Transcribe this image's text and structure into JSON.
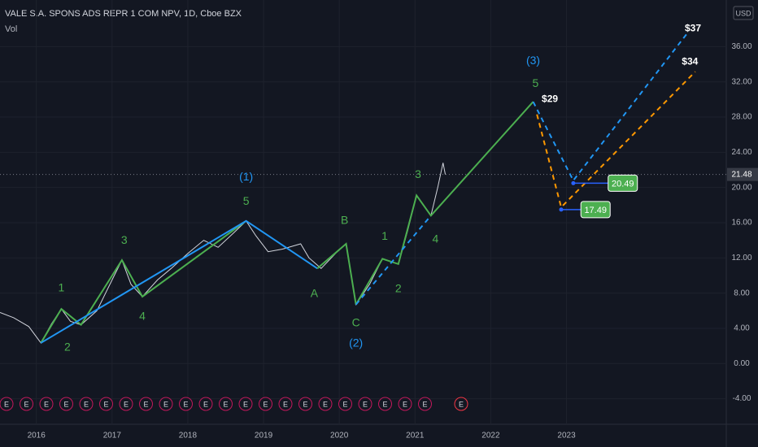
{
  "chart_data": {
    "type": "line",
    "title": "VALE S.A. SPONS ADS REPR 1 COM NPV, 1D, Cboe BZX",
    "subtitle": "Vol",
    "currency": "USD",
    "earnings_marker": "E",
    "color": "#d1d4dc",
    "grid": true,
    "xlim": [
      2015.52,
      2025.11
    ],
    "ylim": [
      -6.9,
      41.3
    ],
    "xticks": [
      2016,
      2017,
      2018,
      2019,
      2020,
      2021,
      2022,
      2023
    ],
    "yticks": [
      {
        "value": -4,
        "label": "-4.00"
      },
      {
        "value": 0,
        "label": "0.00"
      },
      {
        "value": 4,
        "label": "4.00"
      },
      {
        "value": 8,
        "label": "8.00"
      },
      {
        "value": 12,
        "label": "12.00"
      },
      {
        "value": 16,
        "label": "16.00"
      },
      {
        "value": 20,
        "label": "20.00"
      },
      {
        "value": 24,
        "label": "24.00"
      },
      {
        "value": 28,
        "label": "28.00"
      },
      {
        "value": 32,
        "label": "32.00"
      },
      {
        "value": 36,
        "label": "36.00"
      }
    ],
    "x": [
      2015.52,
      2015.7,
      2015.9,
      2016.06,
      2016.2,
      2016.33,
      2016.45,
      2016.59,
      2016.8,
      2017.0,
      2017.13,
      2017.25,
      2017.4,
      2017.6,
      2017.78,
      2018.0,
      2018.21,
      2018.4,
      2018.6,
      2018.77,
      2018.9,
      2019.06,
      2019.25,
      2019.49,
      2019.6,
      2019.76,
      2019.95,
      2020.09,
      2020.22,
      2020.4,
      2020.57,
      2020.78,
      2020.9,
      2021.02,
      2021.21,
      2021.3,
      2021.37,
      2021.4
    ],
    "values": [
      5.8,
      5.2,
      4.2,
      2.34,
      4.5,
      6.2,
      4.8,
      4.4,
      6.0,
      9.5,
      11.75,
      9.0,
      7.6,
      9.5,
      10.8,
      12.5,
      14.0,
      13.2,
      14.8,
      16.2,
      14.5,
      12.7,
      13.0,
      13.6,
      12.0,
      10.8,
      12.5,
      13.6,
      6.7,
      9.0,
      11.9,
      11.3,
      15.0,
      19.1,
      16.8,
      20.0,
      22.8,
      21.48
    ],
    "last_price": 21.48,
    "overlays": [
      {
        "color": "#4caf50",
        "dashed": false,
        "x": [
          2016.06,
          2016.33,
          2016.59,
          2017.13,
          2017.4,
          2018.77
        ],
        "y": [
          2.34,
          6.2,
          4.4,
          11.75,
          7.6,
          16.2
        ]
      },
      {
        "color": "#2196f3",
        "dashed": false,
        "x": [
          2016.06,
          2018.77,
          2019.71
        ],
        "y": [
          2.34,
          16.2,
          10.8
        ]
      },
      {
        "color": "#4caf50",
        "dashed": false,
        "x": [
          2019.71,
          2020.09,
          2020.22
        ],
        "y": [
          10.8,
          13.6,
          6.7
        ]
      },
      {
        "color": "#4caf50",
        "dashed": false,
        "x": [
          2020.22,
          2020.57,
          2020.78,
          2021.02,
          2021.21,
          2022.56
        ],
        "y": [
          6.7,
          11.9,
          11.3,
          19.1,
          16.8,
          29.74
        ]
      },
      {
        "color": "#2196f3",
        "dashed": true,
        "x": [
          2020.22,
          2021.21
        ],
        "y": [
          6.7,
          16.8
        ]
      },
      {
        "color": "#2196f3",
        "dashed": true,
        "x": [
          2022.56,
          2023.09,
          2024.6
        ],
        "y": [
          29.74,
          20.79,
          37.58
        ]
      },
      {
        "color": "#ff9800",
        "dashed": true,
        "x": [
          2022.61,
          2022.93,
          2024.7
        ],
        "y": [
          28.3,
          17.75,
          33.15
        ]
      }
    ],
    "targets": [
      {
        "value": 20.49,
        "x": 2023.09,
        "label_x": 2023.55,
        "color": "#4caf50"
      },
      {
        "value": 17.49,
        "x": 2022.93,
        "label_x": 2023.19,
        "color": "#4caf50"
      }
    ],
    "annotations": [
      {
        "text": "1",
        "x": 2016.33,
        "y": 8.52,
        "color": "#4caf50"
      },
      {
        "text": "2",
        "x": 2016.41,
        "y": 1.79,
        "color": "#4caf50"
      },
      {
        "text": "3",
        "x": 2017.16,
        "y": 13.96,
        "color": "#4caf50"
      },
      {
        "text": "4",
        "x": 2017.4,
        "y": 5.29,
        "color": "#4caf50"
      },
      {
        "text": "5",
        "x": 2018.77,
        "y": 18.39,
        "color": "#4caf50"
      },
      {
        "text": "(1)",
        "x": 2018.77,
        "y": 21.16,
        "color": "#2196f3"
      },
      {
        "text": "A",
        "x": 2019.67,
        "y": 7.87,
        "color": "#4caf50"
      },
      {
        "text": "B",
        "x": 2020.07,
        "y": 16.18,
        "color": "#4caf50"
      },
      {
        "text": "C",
        "x": 2020.22,
        "y": 4.55,
        "color": "#4caf50"
      },
      {
        "text": "(2)",
        "x": 2020.22,
        "y": 2.25,
        "color": "#2196f3"
      },
      {
        "text": "1",
        "x": 2020.6,
        "y": 14.42,
        "color": "#4caf50"
      },
      {
        "text": "2",
        "x": 2020.78,
        "y": 8.43,
        "color": "#4caf50"
      },
      {
        "text": "3",
        "x": 2021.04,
        "y": 21.44,
        "color": "#4caf50"
      },
      {
        "text": "4",
        "x": 2021.27,
        "y": 14.06,
        "color": "#4caf50"
      },
      {
        "text": "5",
        "x": 2022.59,
        "y": 31.77,
        "color": "#4caf50"
      },
      {
        "text": "(3)",
        "x": 2022.56,
        "y": 34.35,
        "color": "#2196f3"
      },
      {
        "text": "$29",
        "x": 2022.78,
        "y": 30.0,
        "color": "#ffffff"
      },
      {
        "text": "$37",
        "x": 2024.67,
        "y": 38.04,
        "color": "#ffffff"
      },
      {
        "text": "$34",
        "x": 2024.63,
        "y": 34.26,
        "color": "#ffffff"
      }
    ]
  }
}
